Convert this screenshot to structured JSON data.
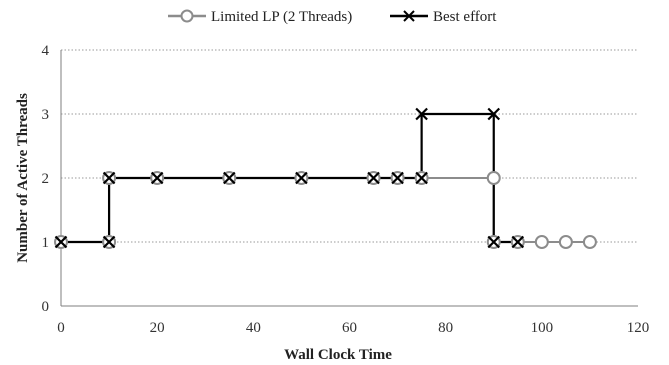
{
  "chart_data": {
    "type": "line",
    "title": "",
    "xlabel": "Wall Clock Time",
    "ylabel": "Number of Active Threads",
    "xlim": [
      0,
      120
    ],
    "ylim": [
      0,
      4
    ],
    "x_ticks": [
      0,
      20,
      40,
      60,
      80,
      100,
      120
    ],
    "y_ticks": [
      0,
      1,
      2,
      3,
      4
    ],
    "x_tick_labels": [
      "0",
      "20",
      "40",
      "60",
      "80",
      "100",
      "120"
    ],
    "y_tick_labels": [
      "0",
      "1",
      "2",
      "3",
      "4"
    ],
    "grid": "horizontal dotted",
    "legend_position": "top",
    "series": [
      {
        "name": "Limited LP (2 Threads)",
        "marker": "circle",
        "color": "#8c8c8c",
        "x": [
          0,
          10,
          10,
          20,
          35,
          50,
          65,
          70,
          75,
          90,
          90,
          95,
          100,
          105,
          110
        ],
        "y": [
          1,
          1,
          2,
          2,
          2,
          2,
          2,
          2,
          2,
          2,
          1,
          1,
          1,
          1,
          1
        ]
      },
      {
        "name": "Best effort",
        "marker": "x",
        "color": "#000000",
        "x": [
          0,
          10,
          10,
          20,
          35,
          50,
          65,
          70,
          75,
          75,
          90,
          90,
          95
        ],
        "y": [
          1,
          1,
          2,
          2,
          2,
          2,
          2,
          2,
          2,
          3,
          3,
          1,
          1
        ]
      }
    ]
  }
}
